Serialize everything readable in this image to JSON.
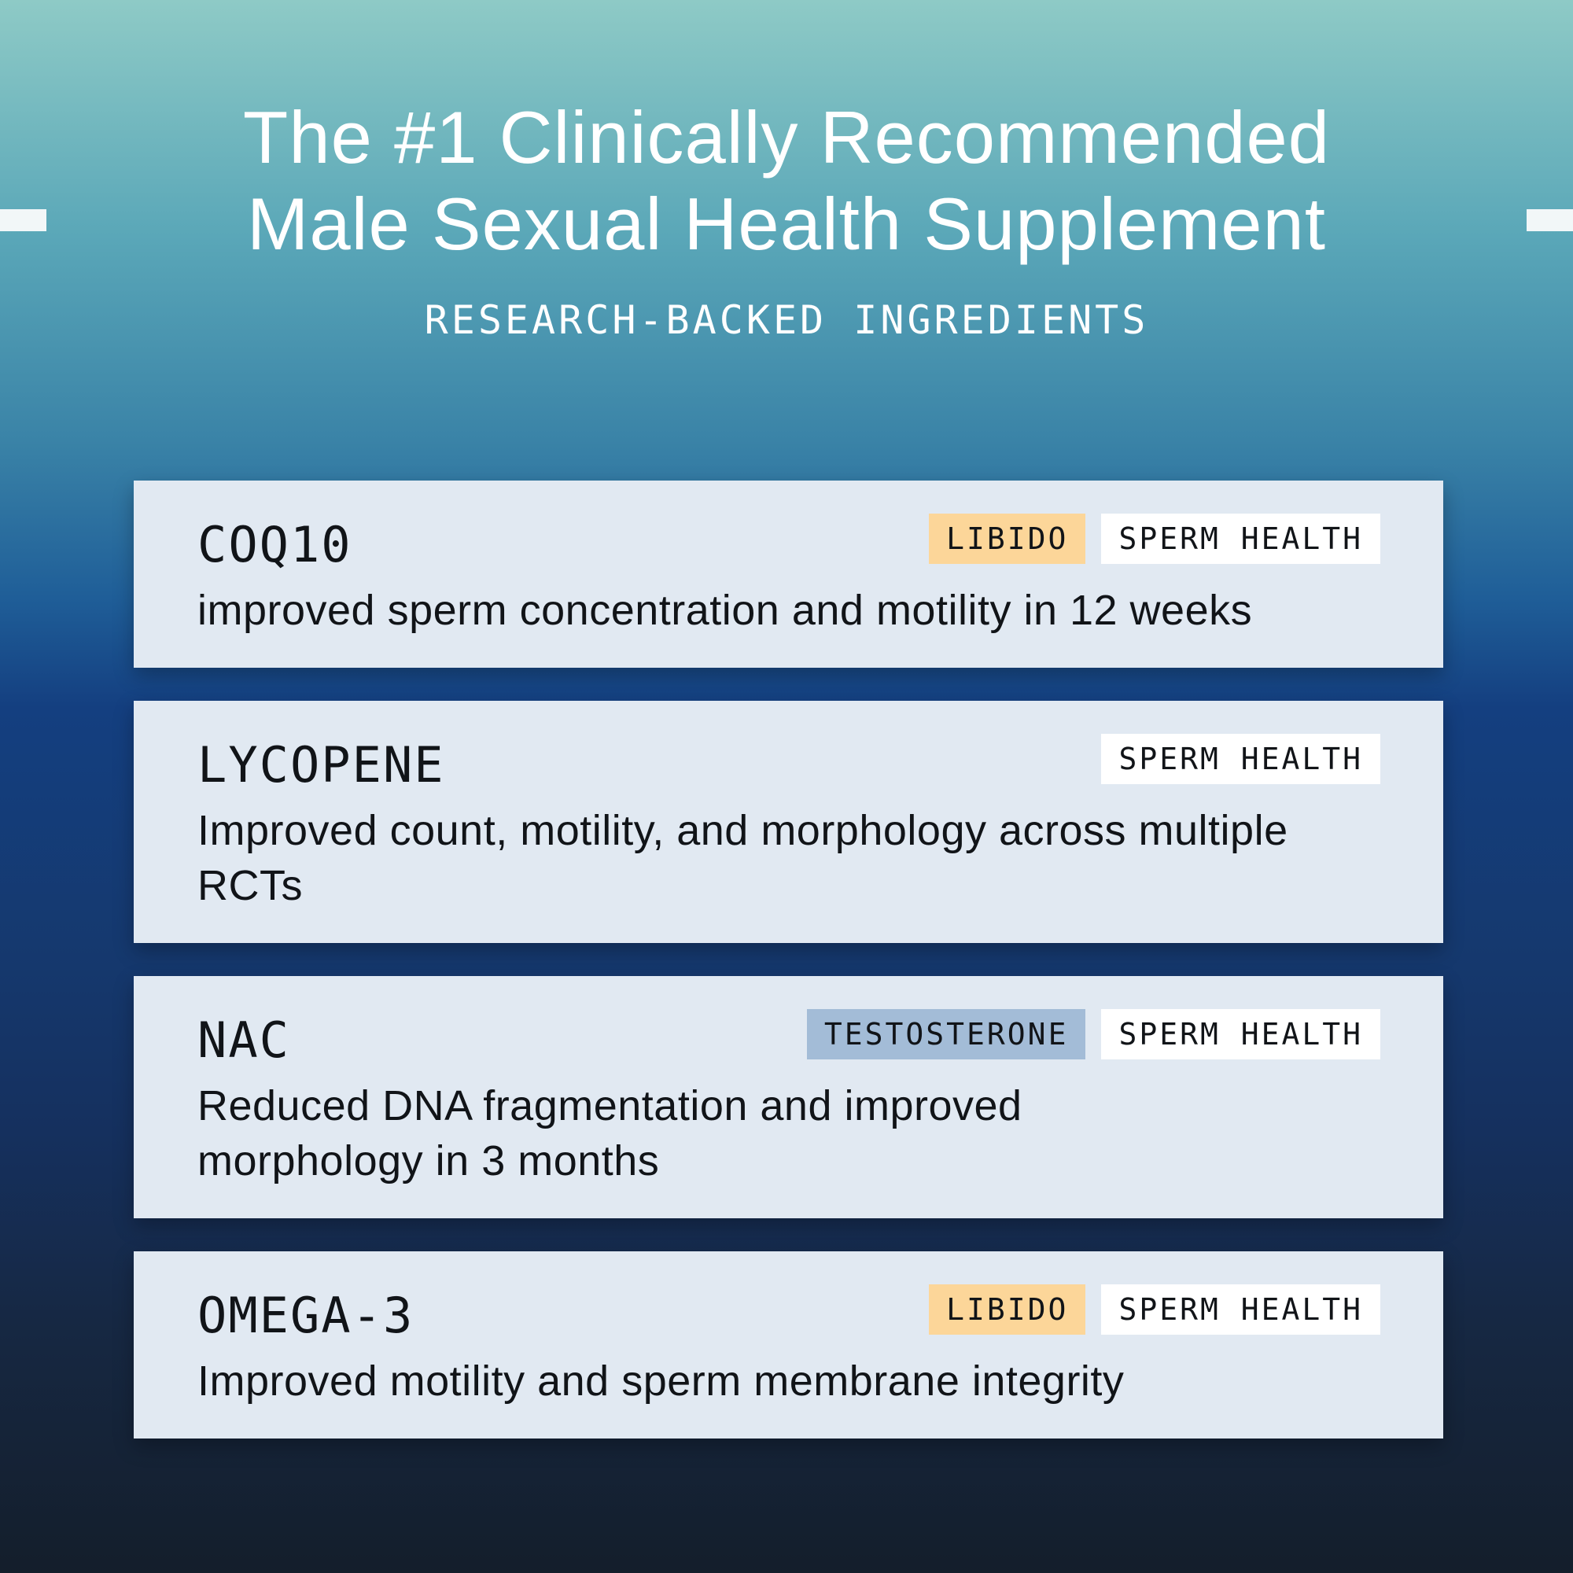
{
  "headline": {
    "line1": "The #1 Clinically Recommended",
    "line2": "Male Sexual Health Supplement"
  },
  "subheading": "RESEARCH-BACKED INGREDIENTS",
  "colors": {
    "card_background": "#e1e9f2",
    "tag_libido": "#fcd699",
    "tag_testosterone": "#a3bcd7",
    "tag_sperm_health": "#ffffff"
  },
  "ingredients": [
    {
      "name": "COQ10",
      "tags": [
        "LIBIDO",
        "SPERM HEALTH"
      ],
      "description": "improved sperm concentration and motility in 12 weeks"
    },
    {
      "name": "LYCOPENE",
      "tags": [
        "SPERM HEALTH"
      ],
      "description": "Improved count, motility, and morphology across multiple RCTs"
    },
    {
      "name": "NAC",
      "tags": [
        "TESTOSTERONE",
        "SPERM HEALTH"
      ],
      "description": "Reduced DNA fragmentation and improved morphology in 3 months"
    },
    {
      "name": "OMEGA-3",
      "tags": [
        "LIBIDO",
        "SPERM HEALTH"
      ],
      "description": "Improved motility and sperm membrane integrity"
    }
  ]
}
